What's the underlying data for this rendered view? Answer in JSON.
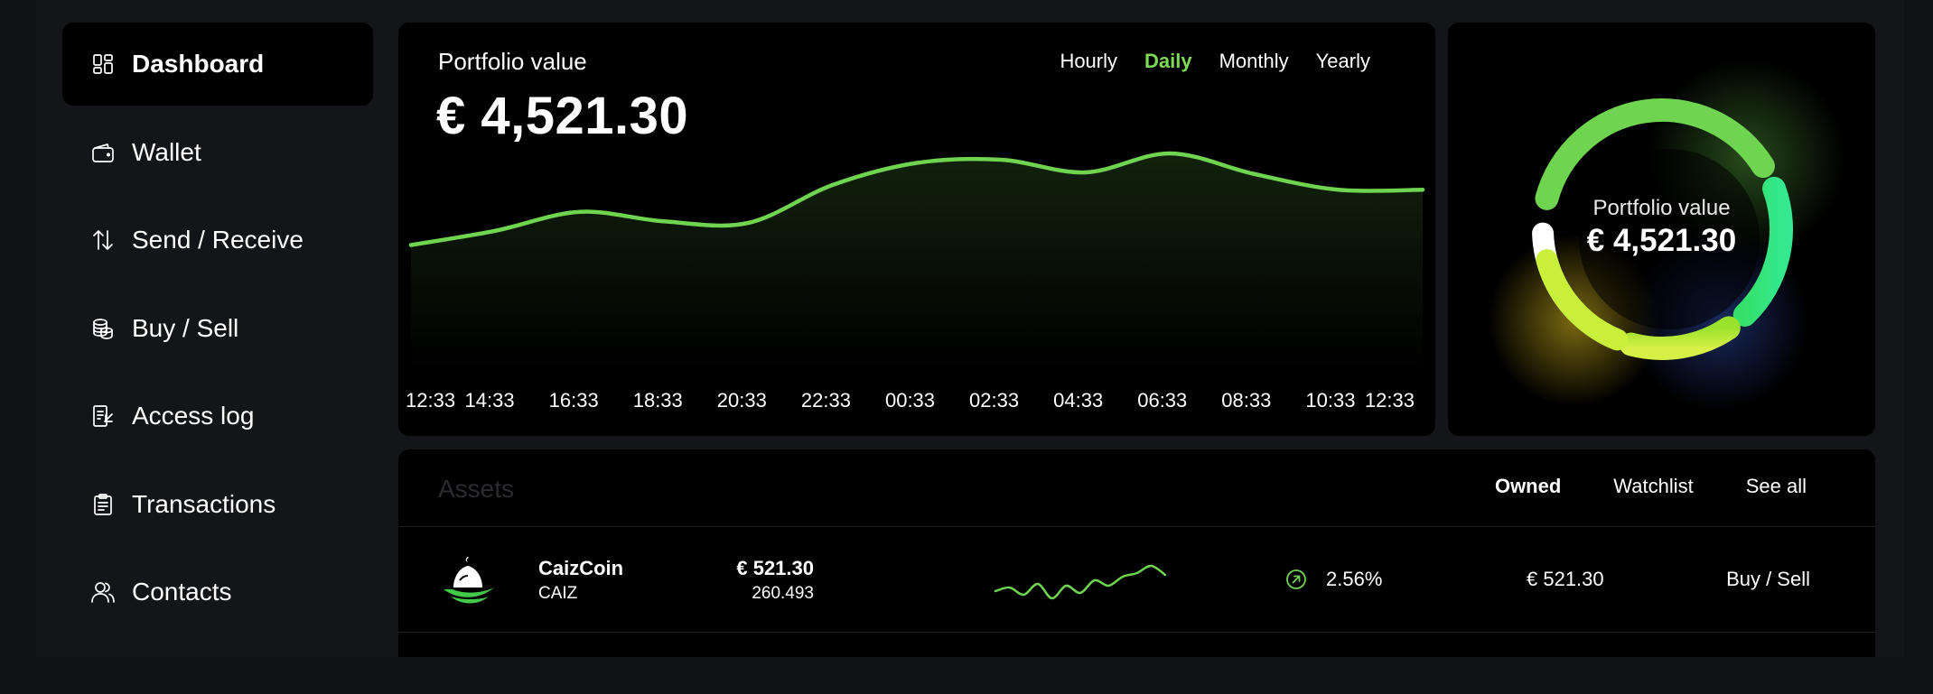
{
  "sidebar": {
    "items": [
      {
        "label": "Dashboard",
        "icon": "dashboard-icon",
        "active": true
      },
      {
        "label": "Wallet",
        "icon": "wallet-icon"
      },
      {
        "label": "Send / Receive",
        "icon": "arrows-updown-icon"
      },
      {
        "label": "Buy / Sell",
        "icon": "coins-icon"
      },
      {
        "label": "Access log",
        "icon": "access-log-icon"
      },
      {
        "label": "Transactions",
        "icon": "clipboard-icon"
      },
      {
        "label": "Contacts",
        "icon": "users-icon"
      }
    ]
  },
  "portfolio": {
    "label": "Portfolio value",
    "value": "€ 4,521.30",
    "periods": [
      "Hourly",
      "Daily",
      "Monthly",
      "Yearly"
    ],
    "active_period": "Daily"
  },
  "chart_data": {
    "type": "area",
    "categories": [
      "12:33",
      "14:33",
      "16:33",
      "18:33",
      "20:33",
      "22:33",
      "00:33",
      "02:33",
      "04:33",
      "06:33",
      "08:33",
      "10:33",
      "12:33"
    ],
    "values": [
      22,
      31,
      43,
      37,
      36,
      60,
      74,
      76,
      68,
      80,
      67,
      57,
      57
    ],
    "ylim": [
      0,
      100
    ],
    "grid": false,
    "line_color": "#6fd44f"
  },
  "donut": {
    "label": "Portfolio value",
    "value": "€ 4,521.30",
    "segment_colors": [
      "#ffffff",
      "#6fd44f",
      "#3ddc84",
      "#9be22d",
      "#c8ef3a"
    ]
  },
  "assets": {
    "title": "Assets",
    "tabs": [
      "Owned",
      "Watchlist",
      "See all"
    ],
    "active_tab": "Owned",
    "rows": [
      {
        "name": "CaizCoin",
        "symbol": "CAIZ",
        "price": "€ 521.30",
        "amount": "260.493",
        "change": "2.56%",
        "value": "€ 521.30",
        "action": "Buy / Sell",
        "logo_icon": "caizcoin-logo-icon",
        "change_icon": "arrow-up-right-icon",
        "sparkline": [
          38,
          34,
          42,
          30,
          46,
          32,
          40,
          26,
          32,
          22,
          18,
          10,
          20
        ]
      }
    ]
  },
  "colors": {
    "accent": "#7ed957",
    "background": "#000000",
    "frame": "#141518"
  }
}
